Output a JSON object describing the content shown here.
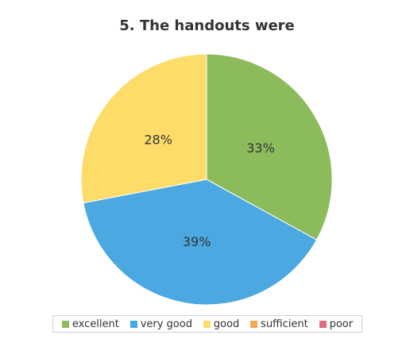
{
  "chart_data": {
    "type": "pie",
    "title": "5. The handouts were",
    "categories": [
      "excellent",
      "very good",
      "good",
      "sufficient",
      "poor"
    ],
    "values": [
      33,
      39,
      28,
      0,
      0
    ],
    "labels": [
      "33%",
      "39%",
      "28%",
      "",
      ""
    ],
    "colors": [
      "#8cbb5c",
      "#4ba8e0",
      "#fddc6a",
      "#f4a74e",
      "#e06e7a"
    ],
    "legend_position": "bottom"
  }
}
